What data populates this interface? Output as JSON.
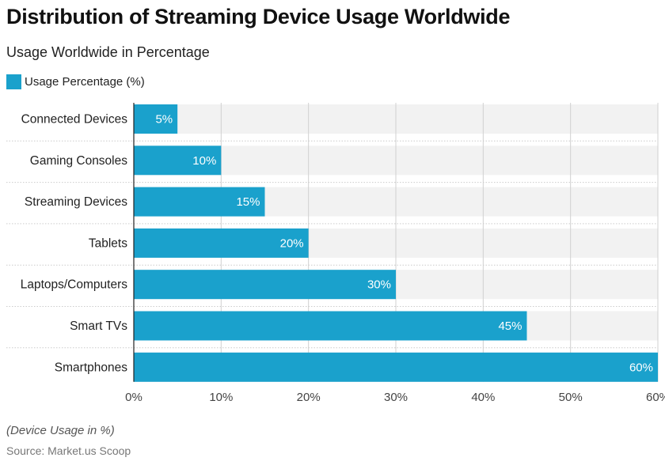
{
  "title": "Distribution of Streaming Device Usage Worldwide",
  "subtitle": "Usage Worldwide in Percentage",
  "footnote": "(Device Usage in %)",
  "source": "Source: Market.us Scoop",
  "chart_data": {
    "type": "bar",
    "orientation": "horizontal",
    "categories": [
      "Connected Devices",
      "Gaming Consoles",
      "Streaming Devices",
      "Tablets",
      "Laptops/Computers",
      "Smart TVs",
      "Smartphones"
    ],
    "series": [
      {
        "name": "Usage Percentage (%)",
        "values": [
          5,
          10,
          15,
          20,
          30,
          45,
          60
        ],
        "color": "#1aa1cc"
      }
    ],
    "data_labels": [
      "5%",
      "10%",
      "15%",
      "20%",
      "30%",
      "45%",
      "60%"
    ],
    "xlim": [
      0,
      60
    ],
    "x_ticks": [
      "0%",
      "10%",
      "20%",
      "30%",
      "40%",
      "50%",
      "60%"
    ],
    "grid": true,
    "legend": "top-left"
  }
}
